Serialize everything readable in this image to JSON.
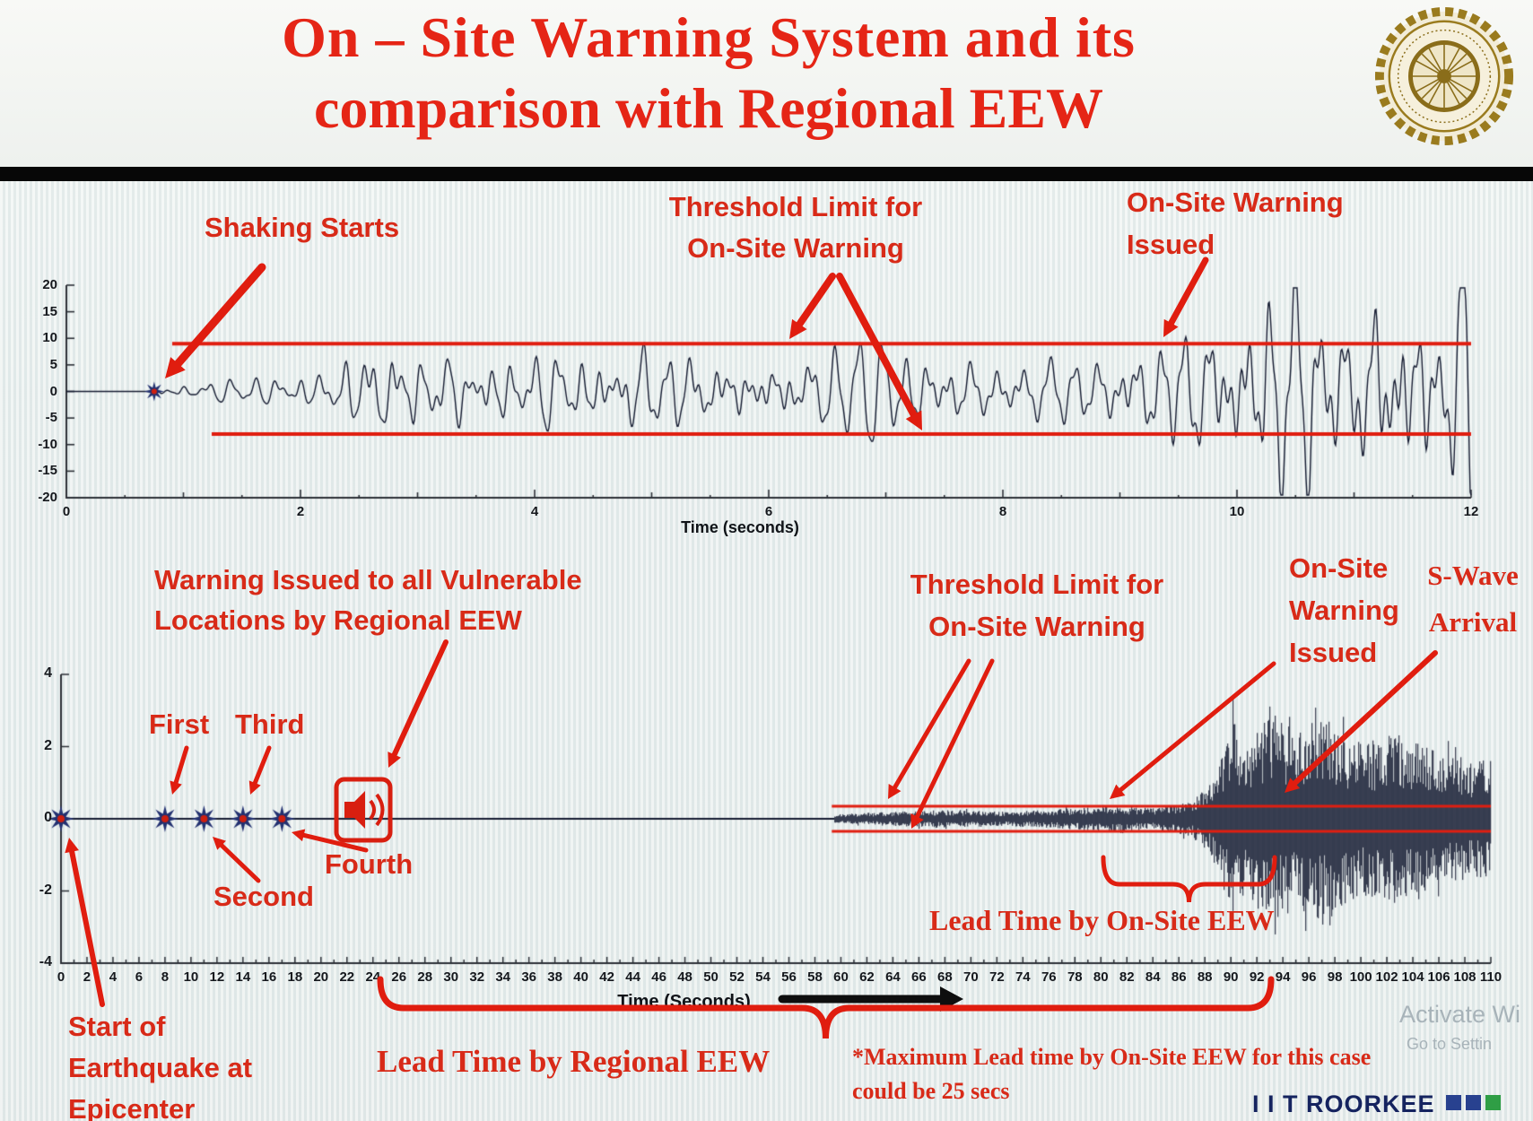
{
  "page": {
    "bg": "#edf1ef",
    "title_red": "#e52516",
    "annotation_red": "#d82a18",
    "threshold_red": "#e01d0f",
    "waveform_ink": "#151b31",
    "axis_color": "#2b2f36",
    "star_blue": "#223070",
    "star_center_red": "#cf1f10",
    "brand_navy": "#15235f",
    "logo_gold": "#9a7b1e",
    "watermark_gray": "#93a0a8"
  },
  "header": {
    "title_line1": "On – Site Warning System and its",
    "title_line2": "comparison with Regional EEW",
    "logo_name": "IIT Roorkee institute seal"
  },
  "chart_data": [
    {
      "type": "line",
      "name": "on-site-warning-accelerogram",
      "title": "",
      "xlabel": "Time (seconds)",
      "ylabel": "",
      "xlim": [
        0,
        12
      ],
      "xticks": [
        0,
        2,
        4,
        6,
        8,
        10,
        12
      ],
      "ylim": [
        -20,
        20
      ],
      "yticks": [
        20,
        15,
        10,
        5,
        0,
        -5,
        -10,
        -15,
        -20
      ],
      "grid": false,
      "legend": "none",
      "threshold_upper": 9,
      "threshold_lower": -8,
      "shaking_starts_s": 0.75,
      "onsite_warning_issued_s": 9.3,
      "envelope_t_amp": [
        [
          0.75,
          0.4
        ],
        [
          1.5,
          1.2
        ],
        [
          2.2,
          2.0
        ],
        [
          2.6,
          5.5
        ],
        [
          3.2,
          4.2
        ],
        [
          4,
          4.5
        ],
        [
          5,
          5.5
        ],
        [
          6,
          5.0
        ],
        [
          7,
          5.5
        ],
        [
          8,
          4.5
        ],
        [
          8.8,
          5.0
        ],
        [
          9.3,
          8.0
        ],
        [
          9.8,
          11.0
        ],
        [
          10.2,
          15.0
        ],
        [
          10.5,
          17.5
        ],
        [
          10.9,
          13.0
        ],
        [
          11.3,
          17.0
        ],
        [
          11.7,
          13.0
        ],
        [
          12,
          16.0
        ]
      ]
    },
    {
      "type": "line",
      "name": "regional-vs-onsite-comparison-record",
      "title": "",
      "xlabel": "Time (Seconds)",
      "ylabel": "",
      "xlim": [
        0,
        110
      ],
      "xticks": [
        0,
        2,
        4,
        6,
        8,
        10,
        12,
        14,
        16,
        18,
        20,
        22,
        24,
        26,
        28,
        30,
        32,
        34,
        36,
        38,
        40,
        42,
        44,
        46,
        48,
        50,
        52,
        54,
        56,
        58,
        60,
        62,
        64,
        66,
        68,
        70,
        72,
        74,
        76,
        78,
        80,
        82,
        84,
        86,
        88,
        90,
        92,
        94,
        96,
        98,
        100,
        102,
        104,
        106,
        108,
        110
      ],
      "ylim": [
        -4,
        4
      ],
      "yticks": [
        4,
        2,
        0,
        -2,
        -4
      ],
      "grid": false,
      "legend": "none",
      "threshold_upper": 0.35,
      "threshold_lower": -0.35,
      "epicenter_s": 0,
      "regional_warning_stars_s": [
        8,
        11,
        14,
        17
      ],
      "regional_eew_broadcast_s": 23,
      "p_wave_onset_s": 59.5,
      "onsite_warning_issued_s": 80,
      "s_wave_arrival_s": 93,
      "lead_time_regional_span_s": [
        24,
        93
      ],
      "lead_time_onsite_span_s": [
        80,
        93
      ],
      "max_onsite_lead_time_s": 25,
      "envelope_t_amp": [
        [
          59.5,
          0.12
        ],
        [
          64,
          0.2
        ],
        [
          68,
          0.25
        ],
        [
          72,
          0.2
        ],
        [
          76,
          0.25
        ],
        [
          80,
          0.35
        ],
        [
          84,
          0.3
        ],
        [
          87,
          0.5
        ],
        [
          89,
          1.3
        ],
        [
          90,
          2.8
        ],
        [
          91.5,
          2.2
        ],
        [
          93,
          3.0
        ],
        [
          95,
          2.5
        ],
        [
          97,
          2.9
        ],
        [
          100,
          2.1
        ],
        [
          103,
          2.4
        ],
        [
          106,
          1.8
        ],
        [
          110,
          1.6
        ]
      ]
    }
  ],
  "annotations": {
    "shaking_starts": "Shaking Starts",
    "threshold_top_line1": "Threshold Limit for",
    "threshold_top_line2": "On-Site Warning",
    "onsite_top_line1": "On-Site Warning",
    "onsite_top_line2": "Issued",
    "regional_warning_line1": "Warning Issued to all Vulnerable",
    "regional_warning_line2": "Locations by Regional EEW",
    "first": "First",
    "second": "Second",
    "third": "Third",
    "fourth": "Fourth",
    "threshold_bottom_line1": "Threshold Limit for",
    "threshold_bottom_line2": "On-Site Warning",
    "onsite_bottom_line1": "On-Site",
    "onsite_bottom_line2": "Warning",
    "onsite_bottom_line3": "Issued",
    "swave_line1": "S-Wave",
    "swave_line2": "Arrival",
    "lead_onsite": "Lead Time by On-Site EEW",
    "lead_regional": "Lead Time by Regional EEW",
    "max_note_line1": "*Maximum Lead time by On-Site EEW for this case",
    "max_note_line2": "could be 25 secs",
    "epicenter_line1": "Start of",
    "epicenter_line2": "Earthquake at",
    "epicenter_line3": "Epicenter"
  },
  "footer": {
    "brand": "I I T ROORKEE",
    "squares": [
      "#28418f",
      "#28418f",
      "#2f9e45"
    ],
    "watermark_line1": "Activate Wi",
    "watermark_line2": "Go to Settin"
  }
}
